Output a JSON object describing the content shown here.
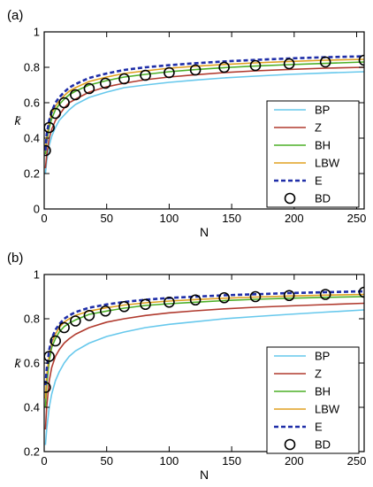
{
  "chart_data": [
    {
      "type": "line",
      "panel_label": "(a)",
      "xlabel": "N",
      "ylabel": "k̄",
      "xlim": [
        0,
        256
      ],
      "ylim": [
        0,
        1
      ],
      "xticks": [
        0,
        50,
        100,
        150,
        200,
        250
      ],
      "yticks": [
        0,
        0.2,
        0.4,
        0.6,
        0.8,
        1
      ],
      "ytick_labels": [
        "0",
        "0.2",
        "0.4",
        "0.6",
        "0.8",
        "1"
      ],
      "grid": false,
      "legend_position": "center-right",
      "series": [
        {
          "name": "BP",
          "color": "#67c8ec",
          "style": "solid",
          "marker": "none",
          "x": [
            1,
            2,
            4,
            6,
            9,
            12,
            16,
            20,
            25,
            36,
            50,
            64,
            81,
            100,
            121,
            144,
            169,
            196,
            225,
            256
          ],
          "y": [
            0.2,
            0.27,
            0.36,
            0.41,
            0.46,
            0.5,
            0.53,
            0.56,
            0.59,
            0.63,
            0.66,
            0.685,
            0.7,
            0.715,
            0.728,
            0.74,
            0.75,
            0.76,
            0.768,
            0.775
          ]
        },
        {
          "name": "Z",
          "color": "#b03a2e",
          "style": "solid",
          "marker": "none",
          "x": [
            1,
            2,
            4,
            6,
            9,
            12,
            16,
            20,
            25,
            36,
            50,
            64,
            81,
            100,
            121,
            144,
            169,
            196,
            225,
            256
          ],
          "y": [
            0.23,
            0.3,
            0.4,
            0.45,
            0.5,
            0.53,
            0.57,
            0.6,
            0.62,
            0.66,
            0.69,
            0.71,
            0.73,
            0.745,
            0.758,
            0.77,
            0.78,
            0.788,
            0.795,
            0.8
          ]
        },
        {
          "name": "BH",
          "color": "#4caf27",
          "style": "solid",
          "marker": "none",
          "x": [
            1,
            2,
            4,
            6,
            9,
            12,
            16,
            20,
            25,
            36,
            50,
            64,
            81,
            100,
            121,
            144,
            169,
            196,
            225,
            256
          ],
          "y": [
            0.31,
            0.38,
            0.46,
            0.51,
            0.56,
            0.59,
            0.62,
            0.645,
            0.665,
            0.7,
            0.725,
            0.745,
            0.76,
            0.775,
            0.787,
            0.798,
            0.807,
            0.815,
            0.822,
            0.83
          ]
        },
        {
          "name": "LBW",
          "color": "#e0a020",
          "style": "solid",
          "marker": "none",
          "x": [
            1,
            2,
            4,
            6,
            9,
            12,
            16,
            20,
            25,
            36,
            50,
            64,
            81,
            100,
            121,
            144,
            169,
            196,
            225,
            256
          ],
          "y": [
            0.33,
            0.4,
            0.49,
            0.54,
            0.58,
            0.61,
            0.64,
            0.665,
            0.685,
            0.72,
            0.745,
            0.765,
            0.78,
            0.795,
            0.806,
            0.816,
            0.825,
            0.833,
            0.84,
            0.845
          ]
        },
        {
          "name": "E",
          "color": "#1f2ea8",
          "style": "dashed",
          "marker": "none",
          "x": [
            1,
            2,
            4,
            6,
            9,
            12,
            16,
            20,
            25,
            36,
            50,
            64,
            81,
            100,
            121,
            144,
            169,
            196,
            225,
            256
          ],
          "y": [
            0.33,
            0.42,
            0.5,
            0.55,
            0.6,
            0.63,
            0.66,
            0.685,
            0.705,
            0.74,
            0.765,
            0.785,
            0.8,
            0.812,
            0.823,
            0.833,
            0.842,
            0.85,
            0.857,
            0.862
          ]
        },
        {
          "name": "BD",
          "color": "#000000",
          "style": "none",
          "marker": "circle",
          "x": [
            1,
            4,
            9,
            16,
            25,
            36,
            49,
            64,
            81,
            100,
            121,
            144,
            169,
            196,
            225,
            256
          ],
          "y": [
            0.33,
            0.46,
            0.54,
            0.6,
            0.645,
            0.68,
            0.71,
            0.735,
            0.755,
            0.77,
            0.785,
            0.8,
            0.81,
            0.82,
            0.83,
            0.84
          ]
        }
      ]
    },
    {
      "type": "line",
      "panel_label": "(b)",
      "xlabel": "N",
      "ylabel": "k̄",
      "xlim": [
        0,
        256
      ],
      "ylim": [
        0.2,
        1
      ],
      "xticks": [
        0,
        50,
        100,
        150,
        200,
        250
      ],
      "yticks": [
        0.2,
        0.4,
        0.6,
        0.8,
        1
      ],
      "ytick_labels": [
        "0.2",
        "0.4",
        "0.6",
        "0.8",
        "1"
      ],
      "grid": false,
      "legend_position": "center-right",
      "series": [
        {
          "name": "BP",
          "color": "#67c8ec",
          "style": "solid",
          "marker": "none",
          "x": [
            1,
            2,
            4,
            6,
            9,
            12,
            16,
            20,
            25,
            36,
            50,
            64,
            81,
            100,
            121,
            144,
            169,
            196,
            225,
            256
          ],
          "y": [
            0.23,
            0.3,
            0.4,
            0.46,
            0.52,
            0.56,
            0.6,
            0.63,
            0.655,
            0.69,
            0.72,
            0.74,
            0.76,
            0.775,
            0.787,
            0.8,
            0.81,
            0.82,
            0.83,
            0.84
          ]
        },
        {
          "name": "Z",
          "color": "#b03a2e",
          "style": "solid",
          "marker": "none",
          "x": [
            1,
            2,
            4,
            6,
            9,
            12,
            16,
            20,
            25,
            36,
            50,
            64,
            81,
            100,
            121,
            144,
            169,
            196,
            225,
            256
          ],
          "y": [
            0.3,
            0.4,
            0.52,
            0.58,
            0.63,
            0.66,
            0.69,
            0.71,
            0.73,
            0.76,
            0.785,
            0.8,
            0.815,
            0.827,
            0.836,
            0.845,
            0.852,
            0.858,
            0.864,
            0.87
          ]
        },
        {
          "name": "BH",
          "color": "#4caf27",
          "style": "solid",
          "marker": "none",
          "x": [
            1,
            2,
            4,
            6,
            9,
            12,
            16,
            20,
            25,
            36,
            50,
            64,
            81,
            100,
            121,
            144,
            169,
            196,
            225,
            256
          ],
          "y": [
            0.4,
            0.5,
            0.61,
            0.67,
            0.71,
            0.74,
            0.765,
            0.78,
            0.795,
            0.82,
            0.835,
            0.848,
            0.86,
            0.868,
            0.875,
            0.882,
            0.888,
            0.893,
            0.897,
            0.9
          ]
        },
        {
          "name": "LBW",
          "color": "#e0a020",
          "style": "solid",
          "marker": "none",
          "x": [
            1,
            2,
            4,
            6,
            9,
            12,
            16,
            20,
            25,
            36,
            50,
            64,
            81,
            100,
            121,
            144,
            169,
            196,
            225,
            256
          ],
          "y": [
            0.44,
            0.54,
            0.64,
            0.69,
            0.73,
            0.76,
            0.785,
            0.8,
            0.815,
            0.835,
            0.85,
            0.862,
            0.872,
            0.88,
            0.887,
            0.893,
            0.898,
            0.903,
            0.907,
            0.91
          ]
        },
        {
          "name": "E",
          "color": "#1f2ea8",
          "style": "dashed",
          "marker": "none",
          "x": [
            1,
            2,
            4,
            6,
            9,
            12,
            16,
            20,
            25,
            36,
            50,
            64,
            81,
            100,
            121,
            144,
            169,
            196,
            225,
            256
          ],
          "y": [
            0.5,
            0.57,
            0.66,
            0.71,
            0.75,
            0.775,
            0.8,
            0.815,
            0.83,
            0.85,
            0.865,
            0.876,
            0.886,
            0.894,
            0.9,
            0.906,
            0.911,
            0.916,
            0.92,
            0.924
          ]
        },
        {
          "name": "BD",
          "color": "#000000",
          "style": "none",
          "marker": "circle",
          "x": [
            1,
            4,
            9,
            16,
            25,
            36,
            49,
            64,
            81,
            100,
            121,
            144,
            169,
            196,
            225,
            256
          ],
          "y": [
            0.49,
            0.63,
            0.7,
            0.76,
            0.79,
            0.815,
            0.835,
            0.855,
            0.865,
            0.875,
            0.885,
            0.895,
            0.9,
            0.905,
            0.91,
            0.92
          ]
        }
      ]
    }
  ]
}
